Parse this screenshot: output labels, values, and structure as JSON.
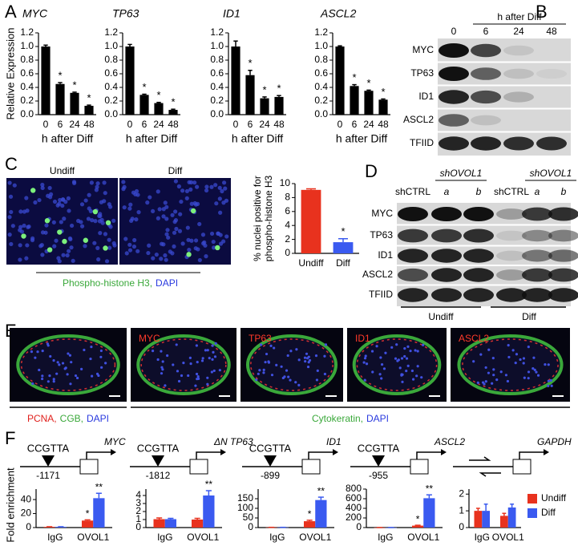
{
  "panels": [
    "A",
    "B",
    "C",
    "D",
    "E",
    "F"
  ],
  "chart_data": [
    {
      "type": "bar",
      "title": "MYC",
      "ylabel": "Relative Expression",
      "xlabel": "h after Diff",
      "color": "#000000",
      "categories": [
        "0",
        "6",
        "24",
        "48"
      ],
      "values": [
        1.0,
        0.45,
        0.32,
        0.13
      ],
      "errors": [
        0.02,
        0.02,
        0.01,
        0.01
      ],
      "stars": [
        null,
        "*",
        "*",
        "*"
      ],
      "ylim": [
        0,
        1.2
      ],
      "yticks": [
        {
          "value": 0,
          "label": "0.0"
        },
        0.2,
        0.4,
        0.6,
        0.8,
        {
          "value": 1,
          "label": "1.0"
        },
        1.2
      ]
    },
    {
      "type": "bar",
      "title": "TP63",
      "xlabel": "h after Diff",
      "color": "#000000",
      "categories": [
        "0",
        "6",
        "24",
        "48"
      ],
      "values": [
        1.0,
        0.29,
        0.17,
        0.07
      ],
      "errors": [
        0.03,
        0.01,
        0.01,
        0.01
      ],
      "stars": [
        null,
        "*",
        "*",
        "*"
      ],
      "ylim": [
        0,
        1.2
      ],
      "yticks": [
        {
          "value": 0,
          "label": "0.0"
        },
        0.2,
        0.4,
        0.6,
        0.8,
        {
          "value": 1,
          "label": "1.0"
        },
        1.2
      ]
    },
    {
      "type": "bar",
      "title": "ID1",
      "xlabel": "h after Diff",
      "color": "#000000",
      "categories": [
        "0",
        "6",
        "24",
        "48"
      ],
      "values": [
        1.0,
        0.58,
        0.24,
        0.26
      ],
      "errors": [
        0.08,
        0.07,
        0.02,
        0.02
      ],
      "stars": [
        null,
        "*",
        "*",
        "*"
      ],
      "ylim": [
        0,
        1.2
      ],
      "yticks": [
        {
          "value": 0,
          "label": "0.0"
        },
        0.2,
        0.4,
        0.6,
        0.8,
        {
          "value": 1,
          "label": "1.0"
        },
        1.2
      ]
    },
    {
      "type": "bar",
      "title": "ASCL2",
      "xlabel": "h after Diff",
      "color": "#000000",
      "categories": [
        "0",
        "6",
        "24",
        "48"
      ],
      "values": [
        1.0,
        0.42,
        0.35,
        0.22
      ],
      "errors": [
        0.01,
        0.02,
        0.01,
        0.01
      ],
      "stars": [
        null,
        "*",
        "*",
        "*"
      ],
      "ylim": [
        0,
        1.2
      ],
      "yticks": [
        {
          "value": 0,
          "label": "0.0"
        },
        0.2,
        0.4,
        0.6,
        0.8,
        {
          "value": 1,
          "label": "1.0"
        },
        1.2
      ]
    },
    {
      "type": "bar",
      "ylabel": [
        "% nuclei positive for",
        "phospho-histone H3"
      ],
      "colors": [
        "#e8321e",
        "#3a5af0"
      ],
      "categories": [
        "Undiff",
        "Diff"
      ],
      "values": [
        9.1,
        1.6
      ],
      "errors": [
        0.15,
        0.5
      ],
      "stars": [
        null,
        "*"
      ],
      "ylim": [
        0,
        10
      ],
      "yticks": [
        0,
        2,
        4,
        6,
        8,
        10
      ]
    },
    {
      "type": "bar",
      "ylabel": "Fold enrichment",
      "motif": "CCGTTA",
      "gene": "MYC",
      "position": "-1171",
      "categories": [
        "IgG",
        "OVOL1"
      ],
      "ylim": [
        0,
        55
      ],
      "yticks": [
        0,
        20,
        40
      ],
      "series": [
        {
          "name": "Undiff",
          "color": "#e8321e",
          "values": [
            1,
            10
          ],
          "errors": [
            0.2,
            1
          ],
          "stars": [
            null,
            "*"
          ]
        },
        {
          "name": "Diff",
          "color": "#3a5af0",
          "values": [
            1,
            42
          ],
          "errors": [
            0.2,
            7
          ],
          "stars": [
            null,
            "**"
          ]
        }
      ]
    },
    {
      "type": "bar",
      "motif": "CCGTTA",
      "gene": "ΔN TP63",
      "position": "-1812",
      "categories": [
        "IgG",
        "OVOL1"
      ],
      "ylim": [
        0,
        4.8
      ],
      "yticks": [
        0,
        1,
        2,
        3,
        4
      ],
      "series": [
        {
          "name": "Undiff",
          "color": "#e8321e",
          "values": [
            1.05,
            1.0
          ],
          "errors": [
            0.15,
            0.15
          ],
          "stars": [
            null,
            null
          ]
        },
        {
          "name": "Diff",
          "color": "#3a5af0",
          "values": [
            1.05,
            4.0
          ],
          "errors": [
            0.1,
            0.6
          ],
          "stars": [
            null,
            "**"
          ]
        }
      ]
    },
    {
      "type": "bar",
      "motif": "CCGTTA",
      "gene": "ID1",
      "position": "-899",
      "categories": [
        "IgG",
        "OVOL1"
      ],
      "ylim": [
        0,
        200
      ],
      "yticks": [
        0,
        50,
        100,
        150
      ],
      "series": [
        {
          "name": "Undiff",
          "color": "#e8321e",
          "values": [
            1,
            33
          ],
          "errors": [
            0.2,
            5
          ],
          "stars": [
            null,
            "*"
          ]
        },
        {
          "name": "Diff",
          "color": "#3a5af0",
          "values": [
            1,
            143
          ],
          "errors": [
            0.2,
            15
          ],
          "stars": [
            null,
            "**"
          ]
        }
      ]
    },
    {
      "type": "bar",
      "motif": "CCGTTA",
      "gene": "ASCL2",
      "position": "-955",
      "categories": [
        "IgG",
        "OVOL1"
      ],
      "ylim": [
        0,
        800
      ],
      "yticks": [
        0,
        200,
        400,
        600,
        800
      ],
      "series": [
        {
          "name": "Undiff",
          "color": "#e8321e",
          "values": [
            1,
            40
          ],
          "errors": [
            0.2,
            8
          ],
          "stars": [
            null,
            "*"
          ]
        },
        {
          "name": "Diff",
          "color": "#3a5af0",
          "values": [
            1,
            610
          ],
          "errors": [
            0.2,
            70
          ],
          "stars": [
            null,
            "**"
          ]
        }
      ]
    },
    {
      "type": "bar",
      "gene": "GAPDH",
      "legend": "right",
      "categories": [
        "IgG",
        "OVOL1"
      ],
      "ylim": [
        0,
        2.3
      ],
      "yticks": [
        0,
        1,
        2
      ],
      "series": [
        {
          "name": "Undiff",
          "color": "#e8321e",
          "values": [
            1.0,
            0.7
          ],
          "errors": [
            0.15,
            0.15
          ],
          "stars": [
            null,
            null
          ]
        },
        {
          "name": "Diff",
          "color": "#3a5af0",
          "values": [
            1.0,
            1.2
          ],
          "errors": [
            0.4,
            0.2
          ],
          "stars": [
            null,
            null
          ]
        }
      ]
    }
  ],
  "blot_B": {
    "header": "h after Diff",
    "lanes": [
      "0",
      "6",
      "24",
      "48"
    ],
    "rows": [
      "MYC",
      "TP63",
      "ID1",
      "ASCL2",
      "TFIID"
    ]
  },
  "images_C": {
    "labels": [
      "Undiff",
      "Diff"
    ],
    "caption": [
      "Phospho-histone H3,",
      "DAPI"
    ]
  },
  "blot_D": {
    "group_header": "shOVOL1",
    "lanes": [
      "shCTRL",
      "a",
      "b",
      "shCTRL",
      "a",
      "b"
    ],
    "groups": [
      "Undiff",
      "Diff"
    ],
    "rows": [
      "MYC",
      "TP63",
      "ID1",
      "ASCL2",
      "TFIID"
    ]
  },
  "images_E": {
    "labels": [
      "MYC",
      "TP63",
      "ID1",
      "ASCL2"
    ],
    "caption_left": [
      "PCNA,",
      "CGB,",
      "DAPI"
    ],
    "caption_right": [
      "Cytokeratin,",
      "DAPI"
    ]
  }
}
